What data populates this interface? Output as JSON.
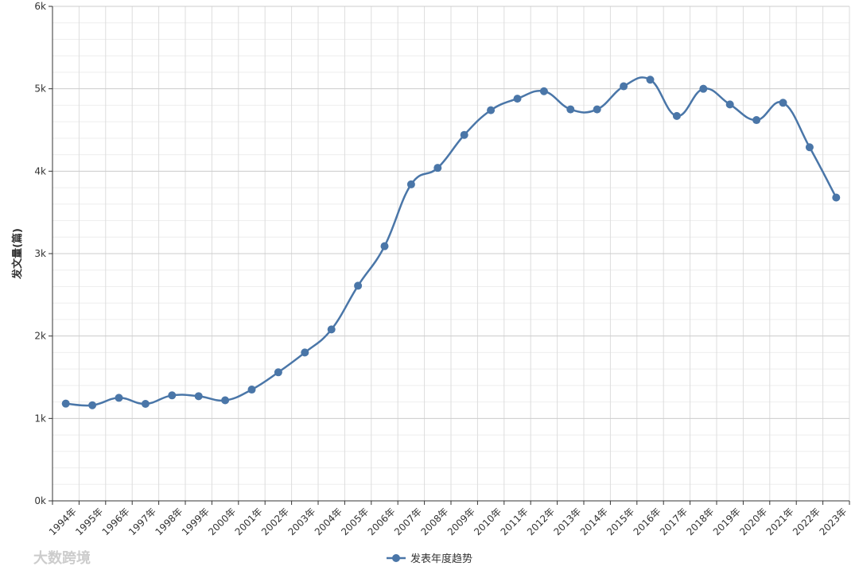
{
  "chart_data": {
    "type": "line",
    "y_label": "发文量(篇)",
    "watermark": "大数跨境",
    "categories": [
      "1994年",
      "1995年",
      "1996年",
      "1997年",
      "1998年",
      "1999年",
      "2000年",
      "2001年",
      "2002年",
      "2003年",
      "2004年",
      "2005年",
      "2006年",
      "2007年",
      "2008年",
      "2009年",
      "2010年",
      "2011年",
      "2012年",
      "2013年",
      "2014年",
      "2015年",
      "2016年",
      "2017年",
      "2018年",
      "2019年",
      "2020年",
      "2021年",
      "2022年",
      "2023年"
    ],
    "series": [
      {
        "name": "发表年度趋势",
        "color": "#4a76a8",
        "values": [
          1180,
          1160,
          1250,
          1177,
          1280,
          1270,
          1220,
          1350,
          1560,
          1800,
          2080,
          2610,
          3090,
          3840,
          4040,
          4440,
          4740,
          4880,
          4970,
          4750,
          4750,
          5030,
          5110,
          4670,
          5000,
          4810,
          4620,
          4830,
          4290,
          3680
        ]
      }
    ],
    "ylim": [
      0,
      6000
    ],
    "yticks": [
      {
        "value": 0,
        "label": "0k"
      },
      {
        "value": 1000,
        "label": "1k"
      },
      {
        "value": 2000,
        "label": "2k"
      },
      {
        "value": 3000,
        "label": "3k"
      },
      {
        "value": 4000,
        "label": "4k"
      },
      {
        "value": 5000,
        "label": "5k"
      },
      {
        "value": 6000,
        "label": "6k"
      }
    ],
    "grid": true,
    "smooth": true,
    "legend": "bottom"
  }
}
